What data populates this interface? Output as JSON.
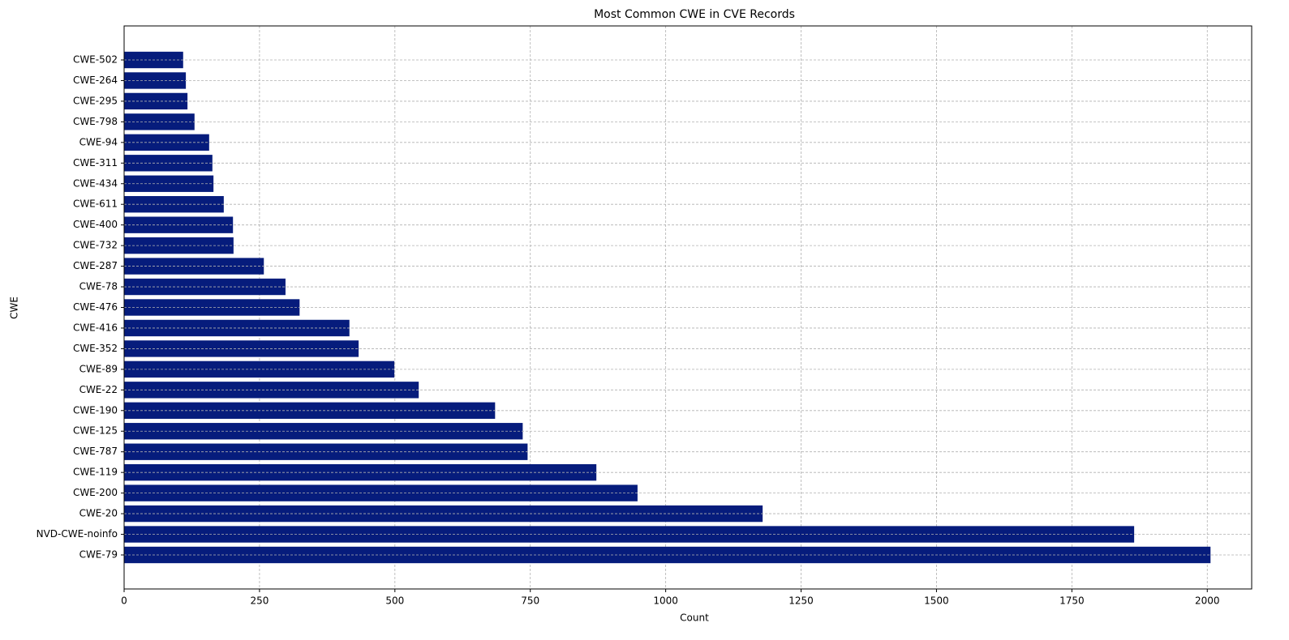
{
  "chart_data": {
    "type": "barh",
    "title": "Most Common CWE in CVE Records",
    "x_label": "Count",
    "y_label": "CWE",
    "categories": [
      "CWE-79",
      "NVD-CWE-noinfo",
      "CWE-20",
      "CWE-200",
      "CWE-119",
      "CWE-787",
      "CWE-125",
      "CWE-190",
      "CWE-22",
      "CWE-89",
      "CWE-352",
      "CWE-416",
      "CWE-476",
      "CWE-78",
      "CWE-287",
      "CWE-732",
      "CWE-400",
      "CWE-611",
      "CWE-434",
      "CWE-311",
      "CWE-94",
      "CWE-798",
      "CWE-295",
      "CWE-264",
      "CWE-502"
    ],
    "values": [
      2006,
      1865,
      1179,
      948,
      872,
      745,
      736,
      685,
      544,
      499,
      433,
      416,
      324,
      298,
      258,
      202,
      201,
      184,
      165,
      163,
      157,
      130,
      117,
      114,
      109
    ],
    "color": "#061c7c",
    "xlim": [
      0,
      2082
    ],
    "xticks": [
      0,
      250,
      500,
      750,
      1000,
      1250,
      1500,
      1750,
      2000
    ],
    "grid": true
  }
}
